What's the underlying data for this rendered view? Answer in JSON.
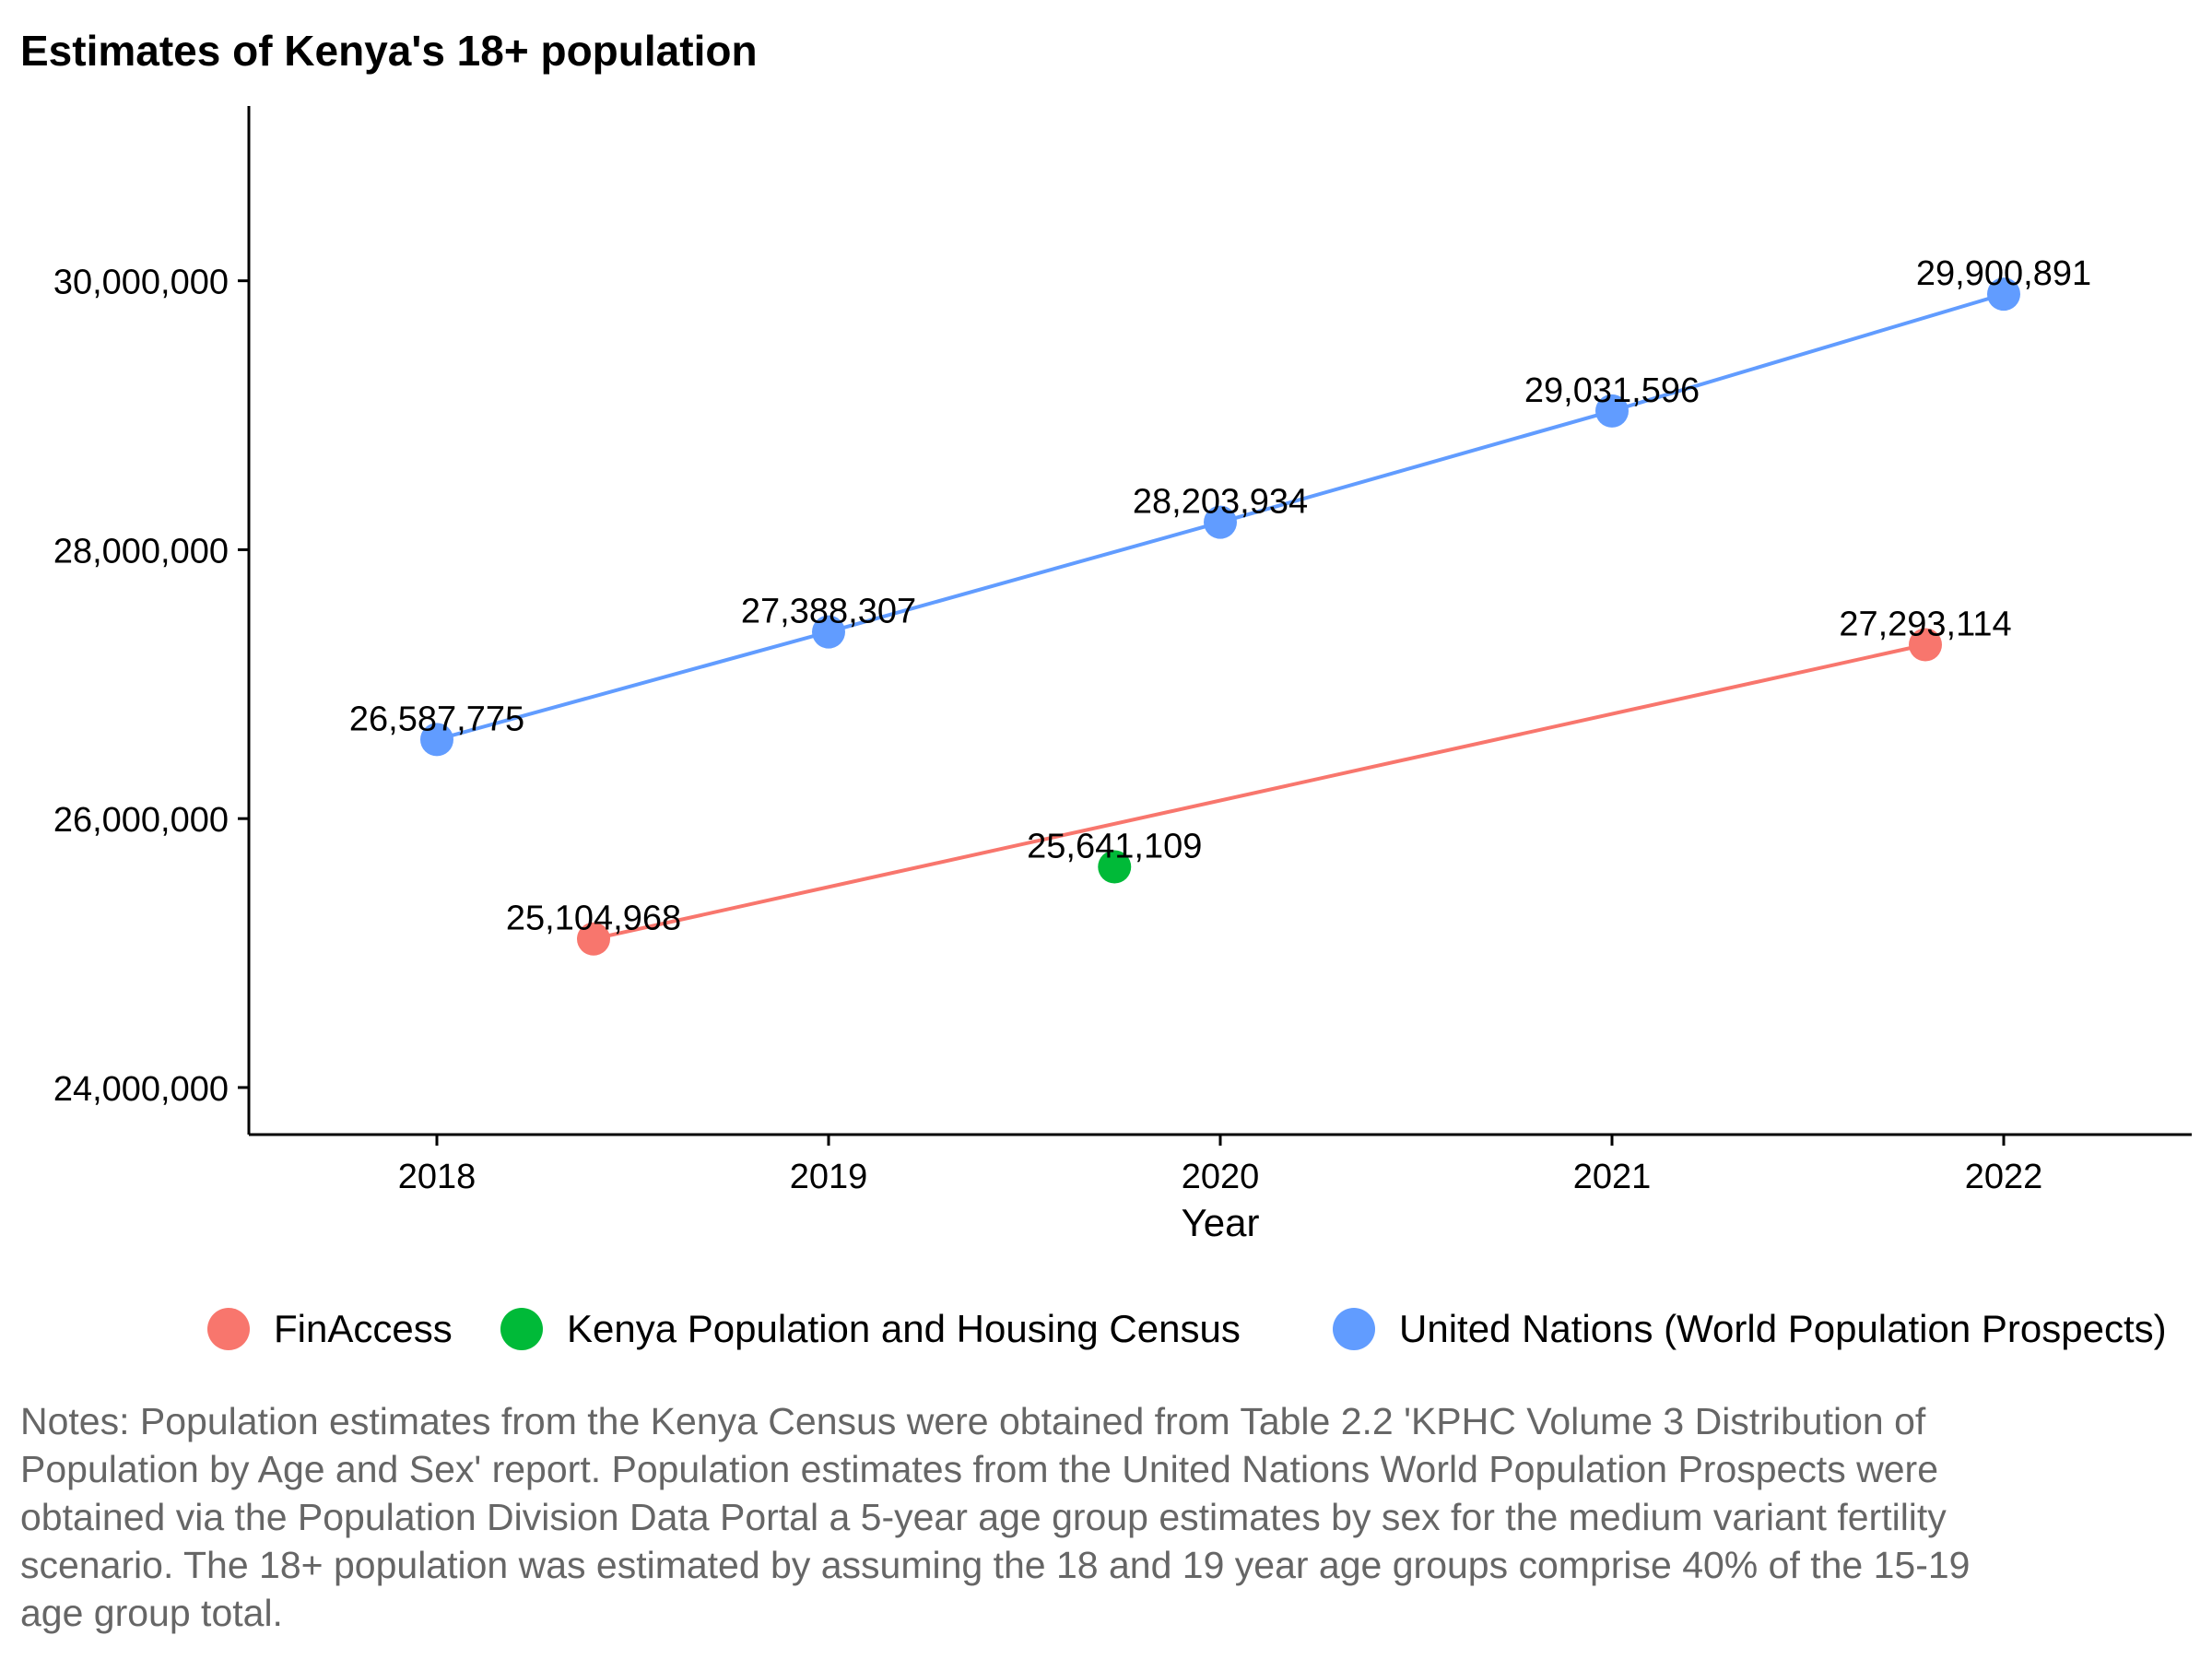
{
  "chart_data": {
    "type": "line",
    "title": "Estimates of Kenya's 18+ population",
    "xlabel": "Year",
    "ylabel": "",
    "xlim": [
      2017.52,
      2022.48
    ],
    "ylim": [
      23650000,
      31300000
    ],
    "x_ticks": [
      2018,
      2019,
      2020,
      2021,
      2022
    ],
    "x_tick_labels": [
      "2018",
      "2019",
      "2020",
      "2021",
      "2022"
    ],
    "y_ticks": [
      24000000,
      26000000,
      28000000,
      30000000
    ],
    "y_tick_labels": [
      "24,000,000",
      "26,000,000",
      "28,000,000",
      "30,000,000"
    ],
    "grid": false,
    "legend_position": "bottom",
    "series": [
      {
        "name": "FinAccess",
        "color": "#F8766D",
        "line": true,
        "points": [
          {
            "x": 2018.4,
            "y": 25104968,
            "label": "25,104,968"
          },
          {
            "x": 2021.8,
            "y": 27293114,
            "label": "27,293,114"
          }
        ]
      },
      {
        "name": "Kenya Population and Housing Census",
        "color": "#00BA38",
        "line": false,
        "points": [
          {
            "x": 2019.73,
            "y": 25641109,
            "label": "25,641,109"
          }
        ]
      },
      {
        "name": "United Nations (World Population Prospects)",
        "color": "#619CFF",
        "line": true,
        "points": [
          {
            "x": 2018,
            "y": 26587775,
            "label": "26,587,775"
          },
          {
            "x": 2019,
            "y": 27388307,
            "label": "27,388,307"
          },
          {
            "x": 2020,
            "y": 28203934,
            "label": "28,203,934"
          },
          {
            "x": 2021,
            "y": 29031596,
            "label": "29,031,596"
          },
          {
            "x": 2022,
            "y": 29900891,
            "label": "29,900,891"
          }
        ]
      }
    ]
  },
  "notes": "Notes: Population estimates from the Kenya Census were obtained from Table 2.2 'KPHC Volume 3 Distribution of Population by Age and Sex' report. Population estimates from the United Nations World Population Prospects were obtained via the Population Division Data Portal a 5-year age group estimates by sex for the medium variant fertility scenario. The 18+ population was estimated by assuming the 18 and 19 year age groups comprise 40% of the 15-19 age group total."
}
